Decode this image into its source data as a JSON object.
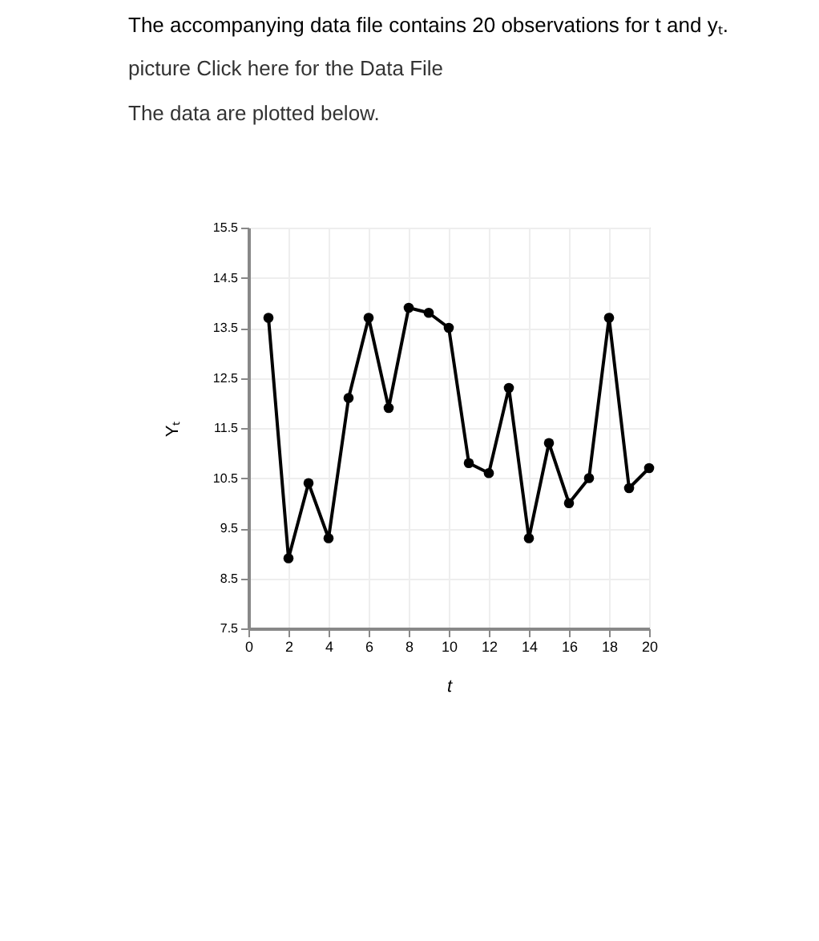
{
  "chart_data": {
    "type": "line",
    "title": "The accompanying data file contains 20 observations for t and yₜ.",
    "subtitle": [
      "picture Click here for the Data File",
      "The data are plotted below."
    ],
    "xlabel": "t",
    "ylabel": "Yₜ",
    "x": [
      1,
      2,
      3,
      4,
      5,
      6,
      7,
      8,
      9,
      10,
      11,
      12,
      13,
      14,
      15,
      16,
      17,
      18,
      19,
      20
    ],
    "series": [
      {
        "color": "#000000",
        "values": [
          13.7,
          8.9,
          10.4,
          9.3,
          12.1,
          13.7,
          11.9,
          13.9,
          13.8,
          13.5,
          10.8,
          10.6,
          12.3,
          9.3,
          11.2,
          10.0,
          10.5,
          13.7,
          10.3,
          10.7
        ]
      }
    ],
    "xlim": [
      0,
      20
    ],
    "xticks": [
      0,
      2,
      4,
      6,
      8,
      10,
      12,
      14,
      16,
      18,
      20
    ],
    "ylim": [
      7.5,
      15.5
    ],
    "yticks": [
      7.5,
      8.5,
      9.5,
      10.5,
      11.5,
      12.5,
      13.5,
      14.5,
      15.5
    ],
    "grid": true,
    "marker": "circle",
    "line_style": "solid"
  }
}
